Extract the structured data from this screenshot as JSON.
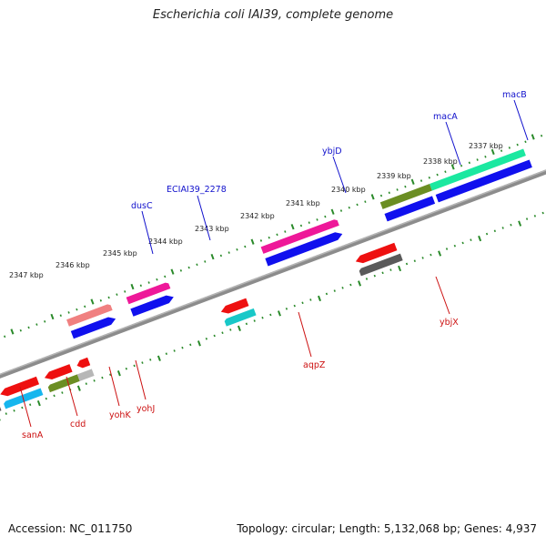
{
  "title": "Escherichia coli IAI39, complete genome",
  "footer": {
    "accession": "Accession: NC_011750",
    "stats": "Topology: circular; Length: 5,132,068 bp; Genes: 4,937"
  },
  "colors": {
    "backbone": "#888888",
    "ticks": "#2a8a2a",
    "forward_label": "#1010cc",
    "reverse_label": "#cc1010"
  },
  "kbp_labels": [
    "2347 kbp",
    "2346 kbp",
    "2345 kbp",
    "2344 kbp",
    "2343 kbp",
    "2342 kbp",
    "2341 kbp",
    "2340 kbp",
    "2339 kbp",
    "2338 kbp",
    "2337 kbp"
  ],
  "forward_gene_labels": [
    "dusC",
    "ECIAI39_2278",
    "ybjD",
    "macA",
    "macB"
  ],
  "reverse_gene_labels": [
    "sanA",
    "cdd",
    "yohK",
    "yohJ",
    "aqpZ",
    "ybjX"
  ]
}
